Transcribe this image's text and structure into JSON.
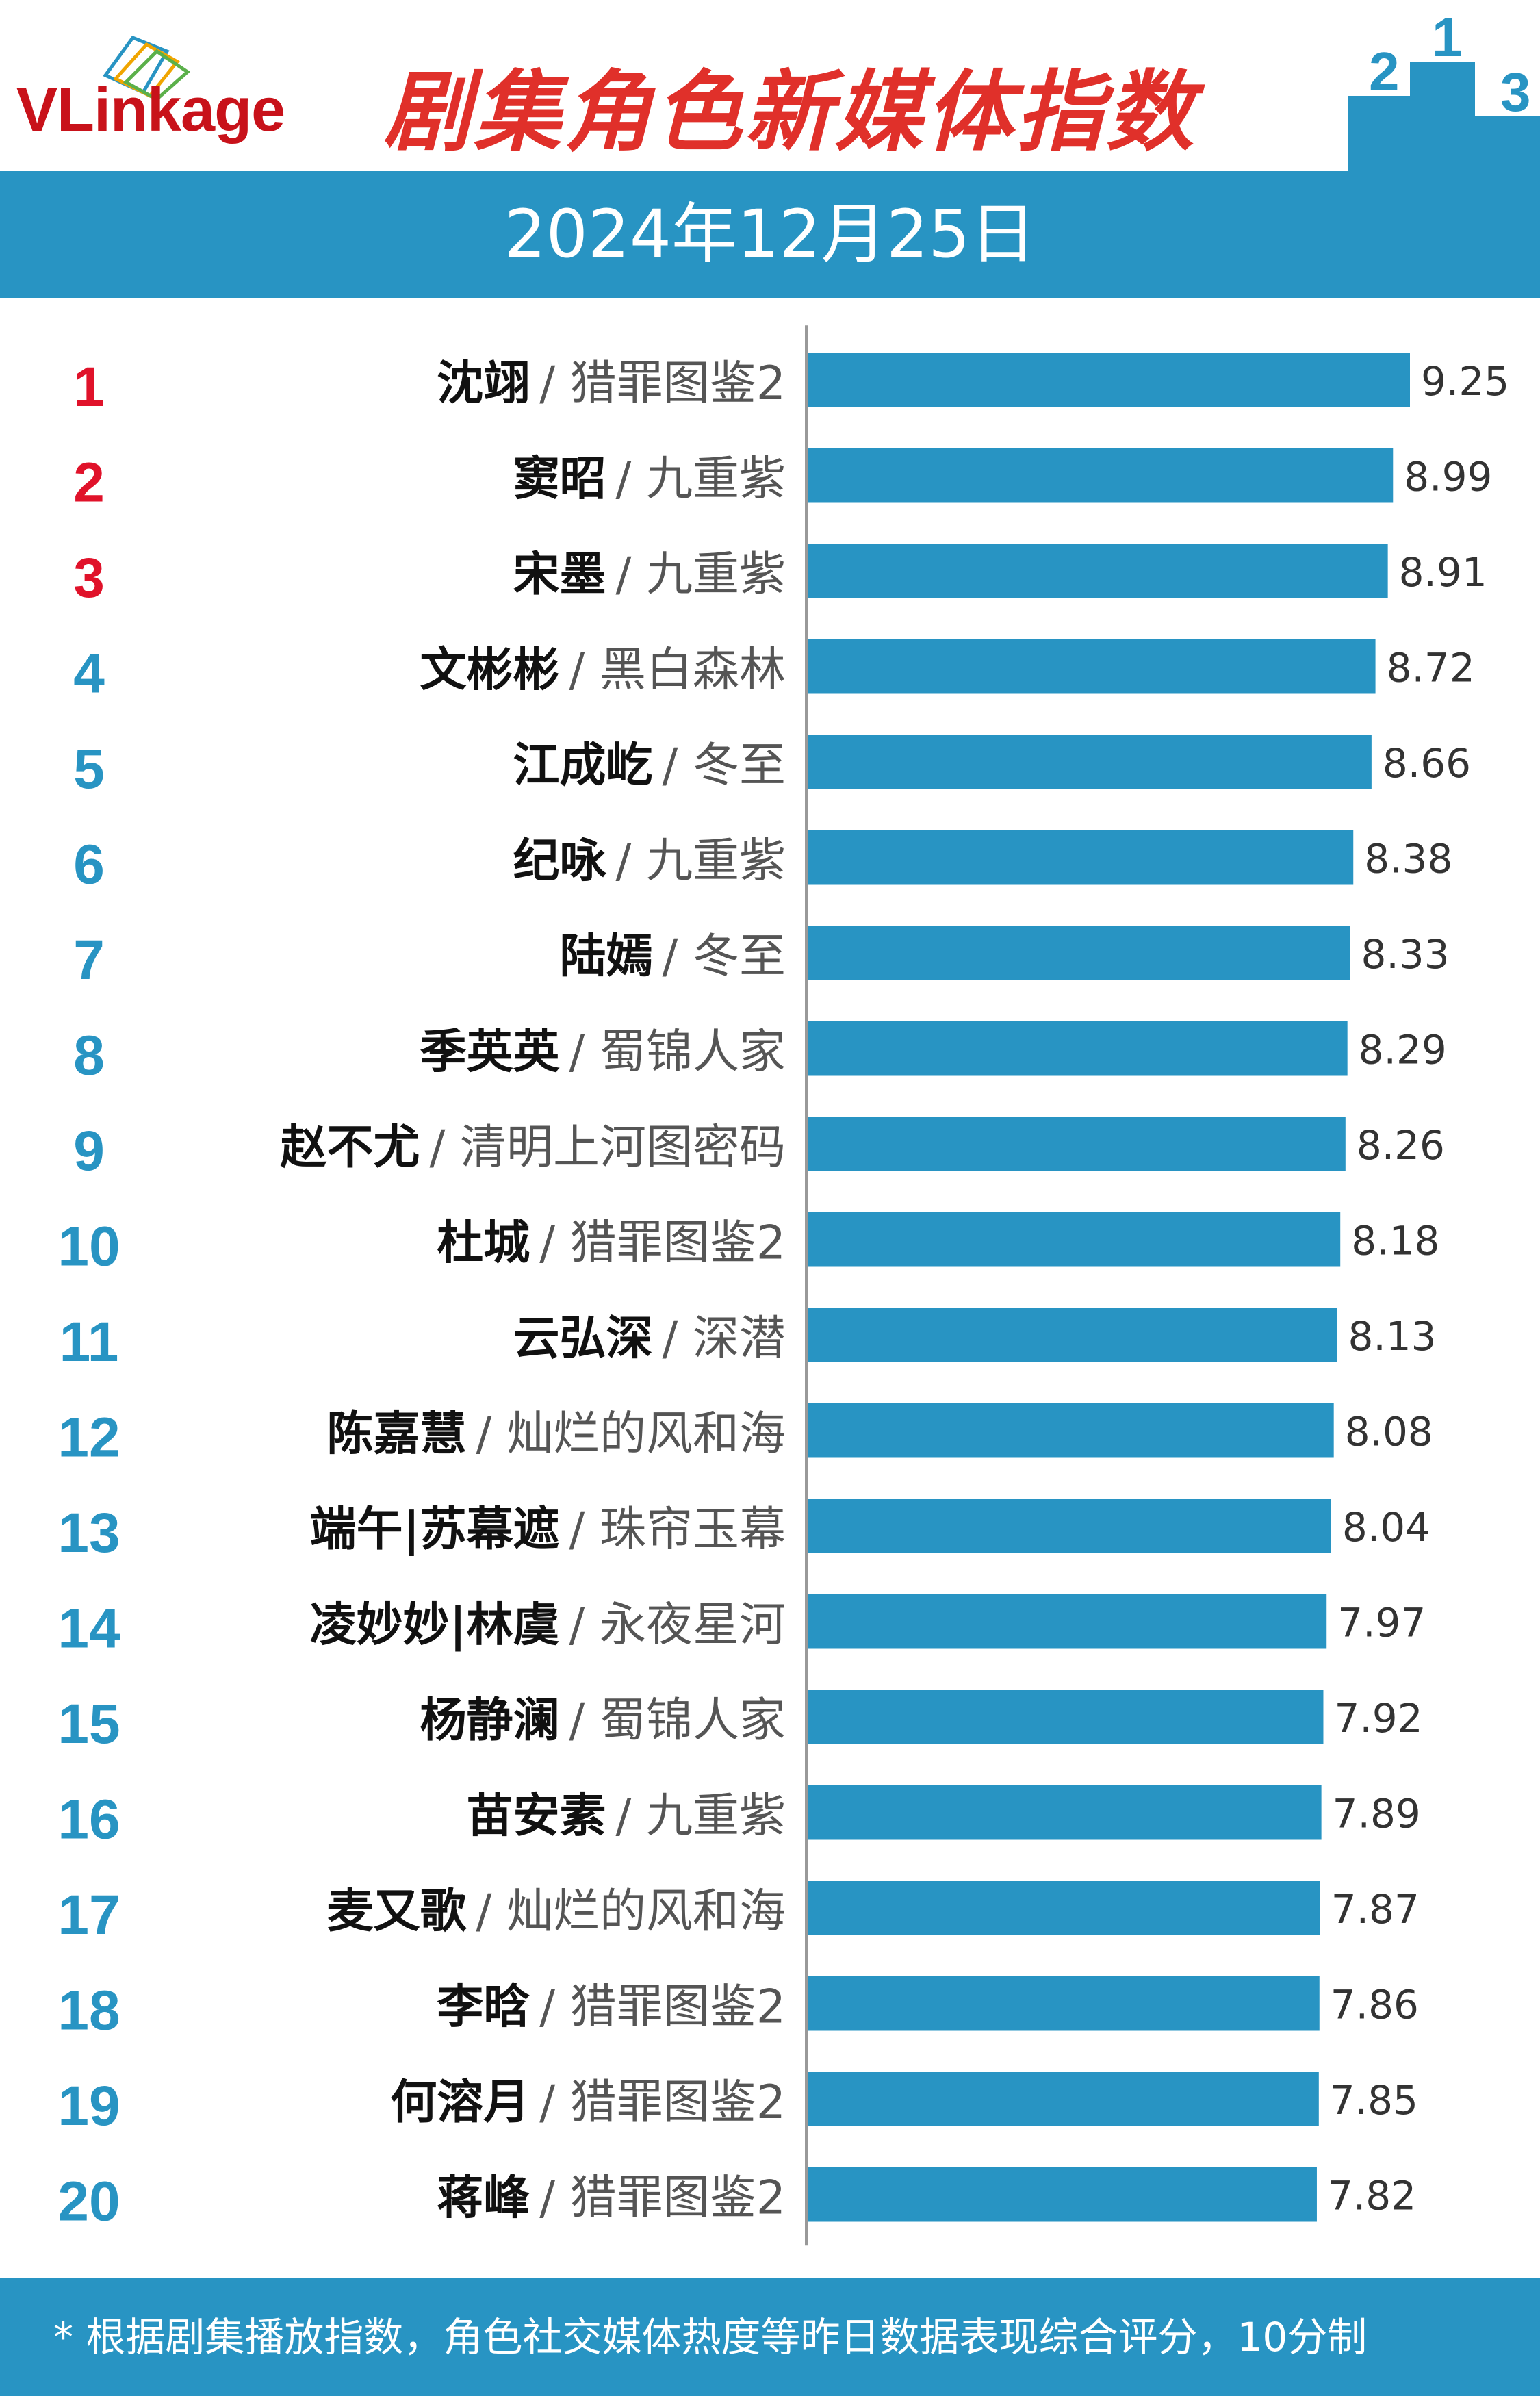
{
  "header": {
    "logo_text": "VLinkage",
    "title": "剧集角色新媒体指数",
    "podium_labels": [
      "2",
      "1",
      "3"
    ]
  },
  "date": "2024年12月25日",
  "footer": {
    "note": "* 根据剧集播放指数，角色社交媒体热度等昨日数据表现综合评分，10分制"
  },
  "colors": {
    "bar": "#2894c3",
    "header_bar": "#2894c3",
    "title": "#e0302a",
    "rank_top3": "#e0122a",
    "rank_other": "#2894c3",
    "axis": "#999999",
    "label": "#111111",
    "drama": "#555555"
  },
  "chart_data": {
    "type": "bar",
    "orientation": "horizontal",
    "title": "剧集角色新媒体指数",
    "xlim": [
      0,
      9.25
    ],
    "grid": false,
    "legend": "none",
    "categories": [
      {
        "rank": "1",
        "name": "沈翊",
        "drama": "/ 猎罪图鉴2"
      },
      {
        "rank": "2",
        "name": "窦昭",
        "drama": "/ 九重紫"
      },
      {
        "rank": "3",
        "name": "宋墨",
        "drama": "/ 九重紫"
      },
      {
        "rank": "4",
        "name": "文彬彬",
        "drama": "/ 黑白森林"
      },
      {
        "rank": "5",
        "name": "江成屹",
        "drama": "/ 冬至"
      },
      {
        "rank": "6",
        "name": "纪咏",
        "drama": "/ 九重紫"
      },
      {
        "rank": "7",
        "name": "陆嫣",
        "drama": "/ 冬至"
      },
      {
        "rank": "8",
        "name": "季英英",
        "drama": "/ 蜀锦人家"
      },
      {
        "rank": "9",
        "name": "赵不尤",
        "drama": "/ 清明上河图密码"
      },
      {
        "rank": "10",
        "name": "杜城",
        "drama": "/ 猎罪图鉴2"
      },
      {
        "rank": "11",
        "name": "云弘深",
        "drama": "/ 深潜"
      },
      {
        "rank": "12",
        "name": "陈嘉慧",
        "drama": "/ 灿烂的风和海"
      },
      {
        "rank": "13",
        "name": "端午|苏幕遮",
        "drama": "/ 珠帘玉幕"
      },
      {
        "rank": "14",
        "name": "凌妙妙|林虞",
        "drama": "/ 永夜星河"
      },
      {
        "rank": "15",
        "name": "杨静澜",
        "drama": "/ 蜀锦人家"
      },
      {
        "rank": "16",
        "name": "苗安素",
        "drama": "/ 九重紫"
      },
      {
        "rank": "17",
        "name": "麦又歌",
        "drama": "/ 灿烂的风和海"
      },
      {
        "rank": "18",
        "name": "李晗",
        "drama": "/ 猎罪图鉴2"
      },
      {
        "rank": "19",
        "name": "何溶月",
        "drama": "/ 猎罪图鉴2"
      },
      {
        "rank": "20",
        "name": "蒋峰",
        "drama": "/ 猎罪图鉴2"
      }
    ],
    "values": [
      9.25,
      8.99,
      8.91,
      8.72,
      8.66,
      8.38,
      8.33,
      8.29,
      8.26,
      8.18,
      8.13,
      8.08,
      8.04,
      7.97,
      7.92,
      7.89,
      7.87,
      7.86,
      7.85,
      7.82
    ],
    "value_labels": [
      "9.25",
      "8.99",
      "8.91",
      "8.72",
      "8.66",
      "8.38",
      "8.33",
      "8.29",
      "8.26",
      "8.18",
      "8.13",
      "8.08",
      "8.04",
      "7.97",
      "7.92",
      "7.89",
      "7.87",
      "7.86",
      "7.85",
      "7.82"
    ]
  }
}
